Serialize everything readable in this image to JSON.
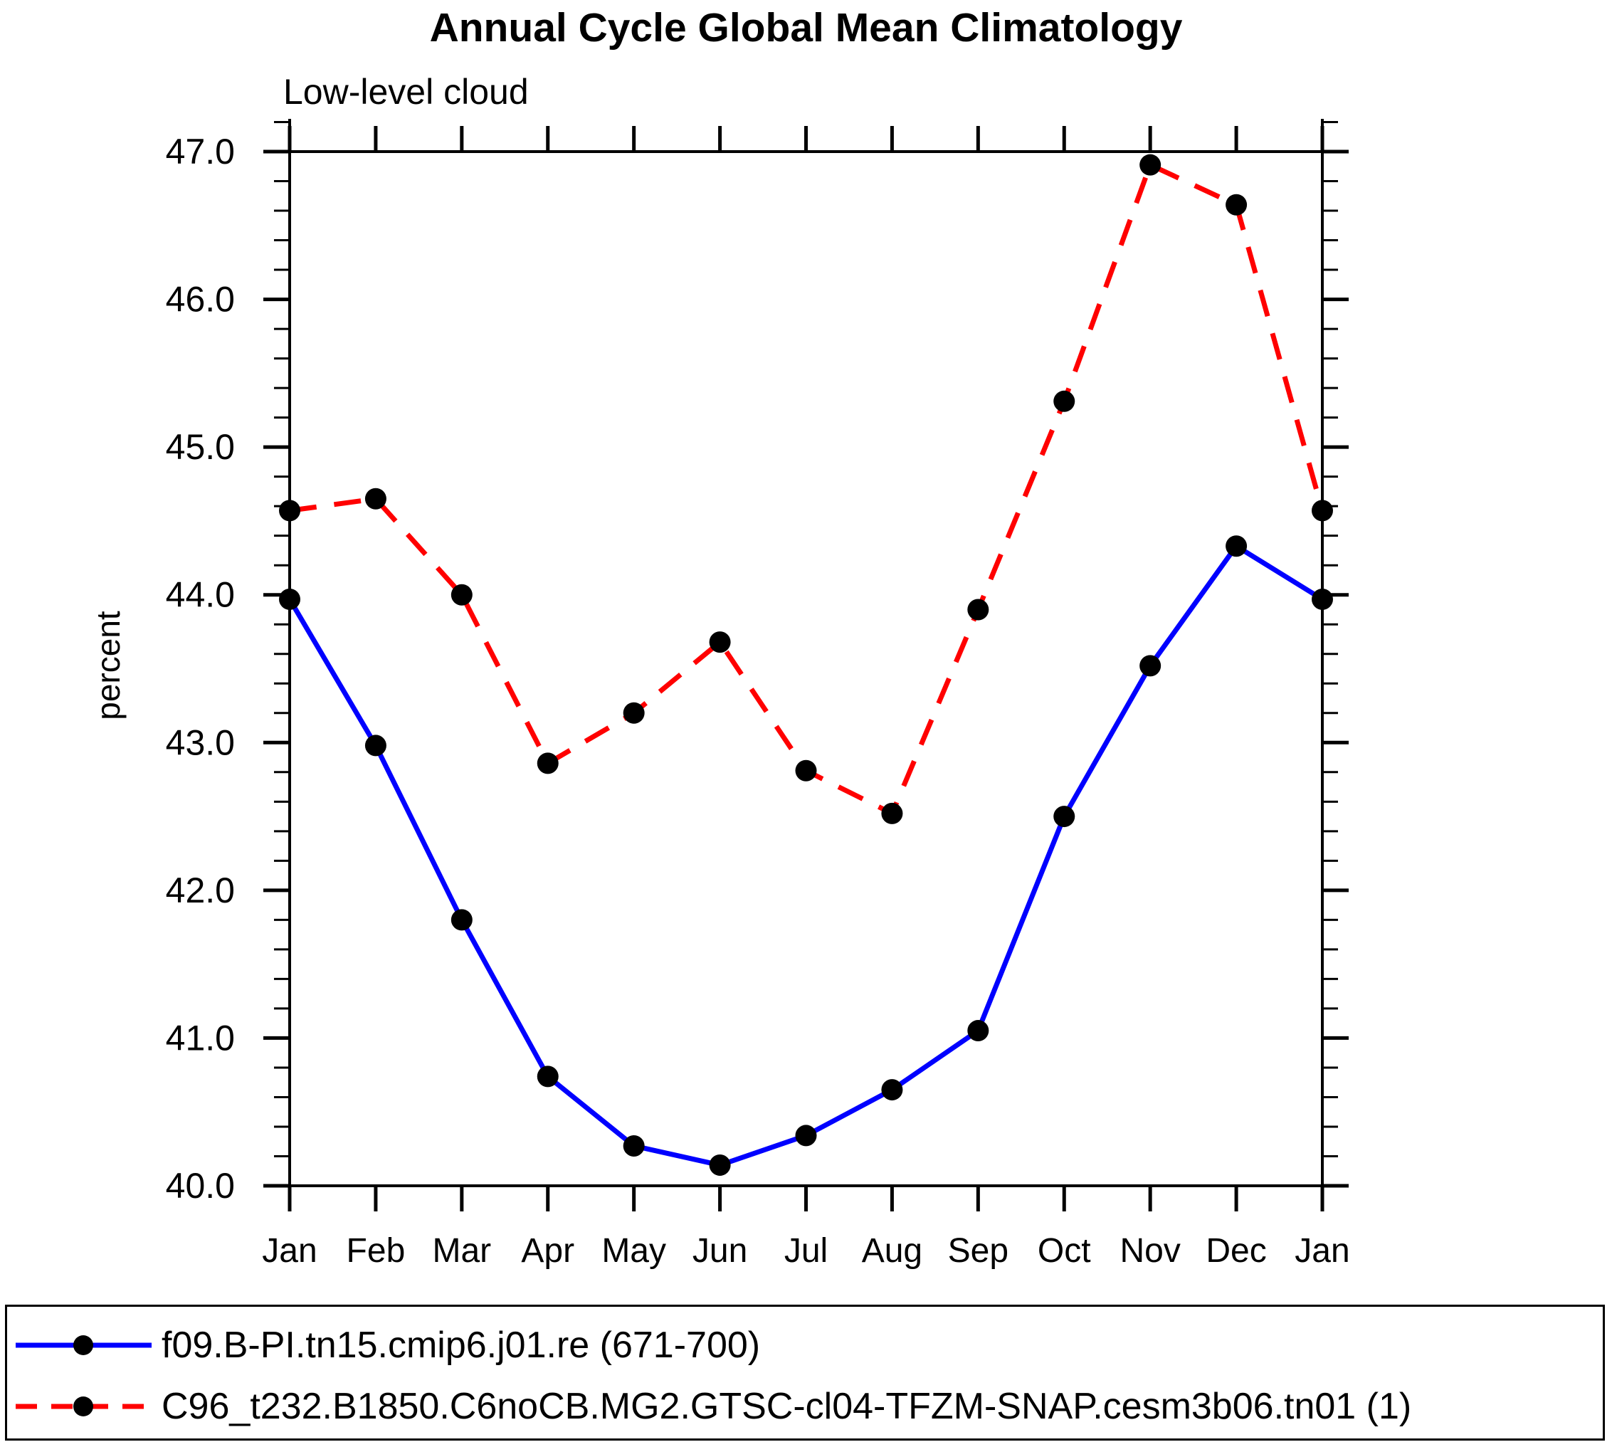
{
  "chart_data": {
    "type": "line",
    "title": "Annual Cycle Global Mean Climatology",
    "subtitle": "Low-level cloud",
    "ylabel": "percent",
    "categories": [
      "Jan",
      "Feb",
      "Mar",
      "Apr",
      "May",
      "Jun",
      "Jul",
      "Aug",
      "Sep",
      "Oct",
      "Nov",
      "Dec",
      "Jan"
    ],
    "ylim": [
      40.0,
      47.0
    ],
    "ytick_major_step": 1.0,
    "ytick_minor_step": 0.2,
    "ytick_labels": [
      "40.0",
      "41.0",
      "42.0",
      "43.0",
      "44.0",
      "45.0",
      "46.0",
      "47.0"
    ],
    "grid": false,
    "legend_position": "bottom",
    "marker_color": "#000000",
    "series": [
      {
        "name": "f09.B-PI.tn15.cmip6.j01.re (671-700)",
        "color": "#0000ff",
        "line_style": "solid",
        "marker": "circle",
        "values": [
          43.97,
          42.98,
          41.8,
          40.74,
          40.27,
          40.14,
          40.34,
          40.65,
          41.05,
          42.5,
          43.52,
          44.33,
          43.97
        ]
      },
      {
        "name": "C96_t232.B1850.C6noCB.MG2.GTSC-cl04-TFZM-SNAP.cesm3b06.tn01 (1)",
        "color": "#ff0000",
        "line_style": "dashed",
        "marker": "circle",
        "values": [
          44.57,
          44.65,
          44.0,
          42.86,
          43.2,
          43.68,
          42.81,
          42.52,
          43.9,
          45.31,
          46.91,
          46.64,
          44.57
        ]
      }
    ]
  }
}
